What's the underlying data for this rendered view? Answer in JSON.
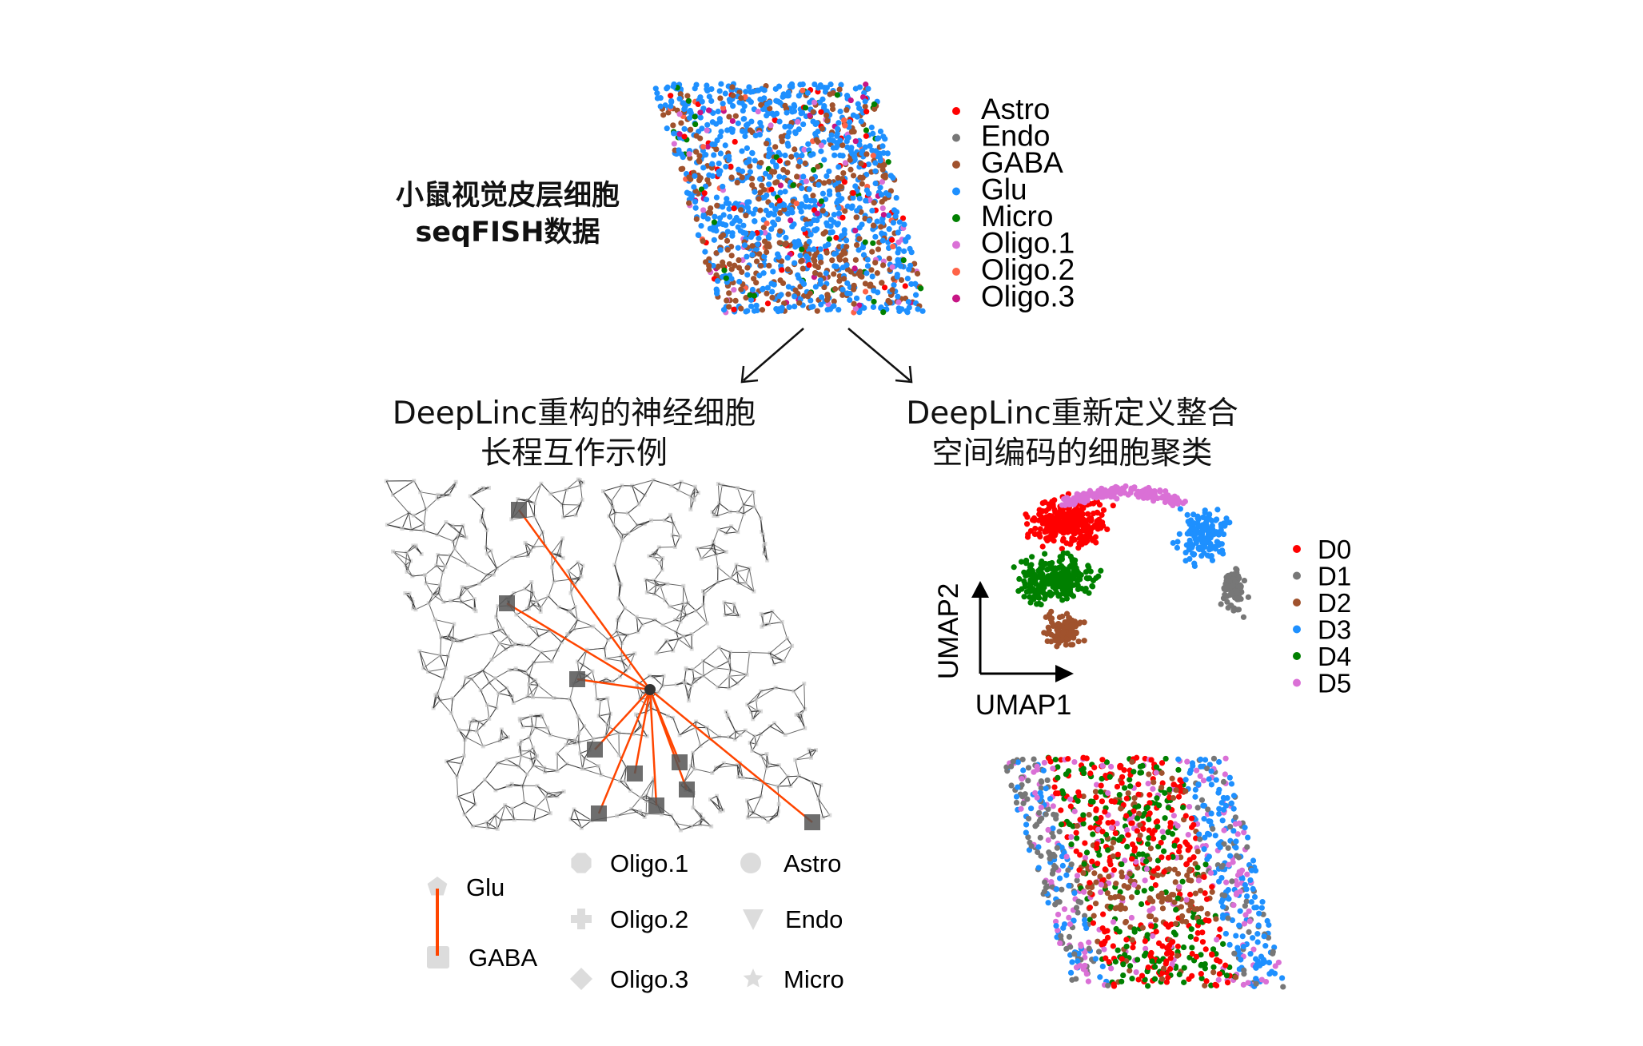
{
  "title": {
    "line1": "小鼠视觉皮层细胞",
    "line2": "seqFISH数据"
  },
  "cell_types": [
    {
      "label": "Astro",
      "color": "#ff0000"
    },
    {
      "label": "Endo",
      "color": "#777777"
    },
    {
      "label": "GABA",
      "color": "#a0522d"
    },
    {
      "label": "Glu",
      "color": "#1e90ff"
    },
    {
      "label": "Micro",
      "color": "#008000"
    },
    {
      "label": "Oligo.1",
      "color": "#da70d6"
    },
    {
      "label": "Oligo.2",
      "color": "#ff6347"
    },
    {
      "label": "Oligo.3",
      "color": "#c71585"
    }
  ],
  "left_panel": {
    "heading_line1": "DeepLinc重构的神经细胞",
    "heading_line2": "长程互作示例",
    "edge_color": "#ff4500",
    "legend": [
      {
        "label": "Glu",
        "shape": "pentagon"
      },
      {
        "label": "GABA",
        "shape": "square"
      },
      {
        "label": "Oligo.1",
        "shape": "octagon"
      },
      {
        "label": "Oligo.2",
        "shape": "plus"
      },
      {
        "label": "Oligo.3",
        "shape": "diamond"
      },
      {
        "label": "Astro",
        "shape": "circle"
      },
      {
        "label": "Endo",
        "shape": "triangle-down"
      },
      {
        "label": "Micro",
        "shape": "star"
      }
    ]
  },
  "right_panel": {
    "heading_line1": "DeepLinc重新定义整合",
    "heading_line2": "空间编码的细胞聚类",
    "umap_x_label": "UMAP1",
    "umap_y_label": "UMAP2",
    "clusters": [
      {
        "label": "D0",
        "color": "#ff0000"
      },
      {
        "label": "D1",
        "color": "#777777"
      },
      {
        "label": "D2",
        "color": "#a0522d"
      },
      {
        "label": "D3",
        "color": "#1e90ff"
      },
      {
        "label": "D4",
        "color": "#008000"
      },
      {
        "label": "D5",
        "color": "#da70d6"
      }
    ]
  }
}
